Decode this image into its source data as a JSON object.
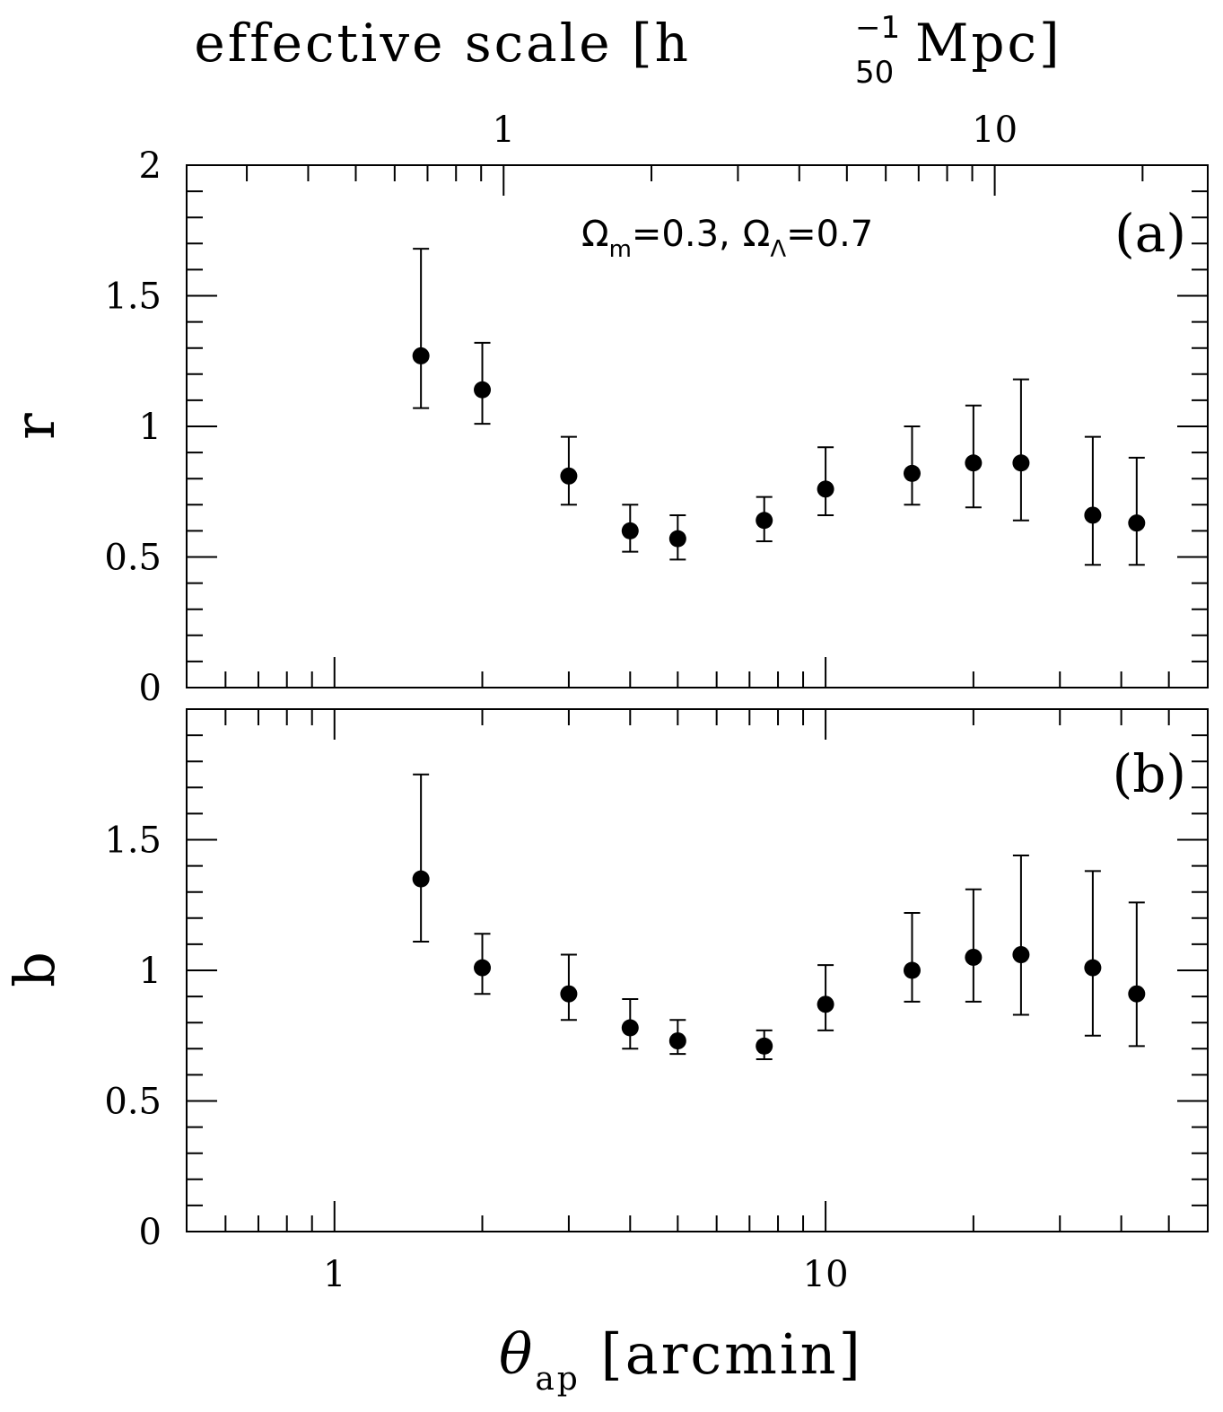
{
  "chart_data": [
    {
      "type": "scatter",
      "panel_label": "(a)",
      "ylabel": "r",
      "annotation": {
        "omega_m": "Ω",
        "sub_m": "m",
        "val_m": "=0.3,",
        "omega_l": "Ω",
        "sub_l": "Λ",
        "val_l": "=0.7"
      },
      "xscale": "log",
      "xlim": [
        0.5,
        60
      ],
      "ylim": [
        0,
        2
      ],
      "yticks": [
        0,
        0.5,
        1,
        1.5,
        2
      ],
      "ytick_labels": [
        "0",
        "0.5",
        "1",
        "1.5",
        "2"
      ],
      "top_axis": {
        "label_main": "effective scale [h",
        "label_sup": "−1",
        "label_sub": "50",
        "label_end": " Mpc]",
        "ticks": [
          1,
          10
        ],
        "tick_labels": [
          "1",
          "10"
        ]
      },
      "series": [
        {
          "name": "r",
          "x": [
            1.5,
            2.0,
            3.0,
            4.0,
            5.0,
            7.5,
            10.0,
            15.0,
            20.0,
            25.0,
            35.0,
            43.0
          ],
          "y": [
            1.27,
            1.14,
            0.81,
            0.6,
            0.57,
            0.64,
            0.76,
            0.82,
            0.86,
            0.86,
            0.66,
            0.63
          ],
          "err_low": [
            1.07,
            1.01,
            0.7,
            0.52,
            0.49,
            0.56,
            0.66,
            0.7,
            0.69,
            0.64,
            0.47,
            0.47
          ],
          "err_high": [
            1.68,
            1.32,
            0.96,
            0.7,
            0.66,
            0.73,
            0.92,
            1.0,
            1.08,
            1.18,
            0.96,
            0.88
          ]
        }
      ]
    },
    {
      "type": "scatter",
      "panel_label": "(b)",
      "ylabel": "b",
      "xlabel_main": "θ",
      "xlabel_sub": "ap",
      "xlabel_end": " [arcmin]",
      "xscale": "log",
      "xlim": [
        0.5,
        60
      ],
      "ylim": [
        0,
        2
      ],
      "yticks": [
        0,
        0.5,
        1,
        1.5
      ],
      "ytick_labels": [
        "0",
        "0.5",
        "1",
        "1.5"
      ],
      "xticks": [
        1,
        10
      ],
      "xtick_labels": [
        "1",
        "10"
      ],
      "series": [
        {
          "name": "b",
          "x": [
            1.5,
            2.0,
            3.0,
            4.0,
            5.0,
            7.5,
            10.0,
            15.0,
            20.0,
            25.0,
            35.0,
            43.0
          ],
          "y": [
            1.35,
            1.01,
            0.91,
            0.78,
            0.73,
            0.71,
            0.87,
            1.0,
            1.05,
            1.06,
            1.01,
            0.91
          ],
          "err_low": [
            1.11,
            0.91,
            0.81,
            0.7,
            0.68,
            0.66,
            0.77,
            0.88,
            0.88,
            0.83,
            0.75,
            0.71
          ],
          "err_high": [
            1.75,
            1.14,
            1.06,
            0.89,
            0.81,
            0.77,
            1.02,
            1.22,
            1.31,
            1.44,
            1.38,
            1.26
          ]
        }
      ]
    }
  ]
}
